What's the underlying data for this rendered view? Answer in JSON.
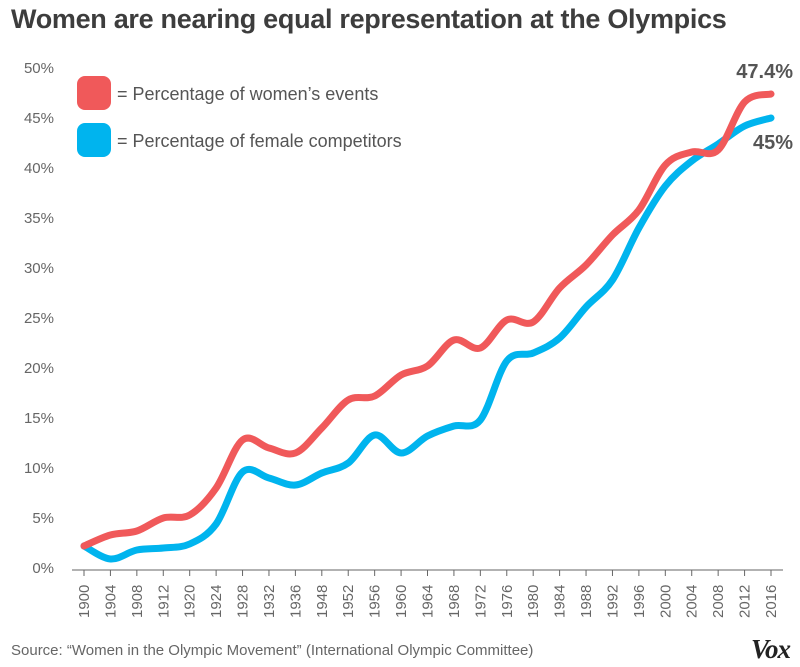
{
  "title": "Women are nearing equal representation at the Olympics",
  "source": "Source: “Women in the Olympic Movement” (International Olympic Committee)",
  "brand": "Vox",
  "chart_data": {
    "type": "line",
    "title": "Women are nearing equal representation at the Olympics",
    "xlabel": "",
    "ylabel": "",
    "ylim": [
      0,
      50
    ],
    "yticks": [
      "0%",
      "5%",
      "10%",
      "15%",
      "20%",
      "25%",
      "30%",
      "35%",
      "40%",
      "45%",
      "50%"
    ],
    "categories": [
      "1900",
      "1904",
      "1908",
      "1912",
      "1920",
      "1924",
      "1928",
      "1932",
      "1936",
      "1948",
      "1952",
      "1956",
      "1960",
      "1964",
      "1968",
      "1972",
      "1976",
      "1980",
      "1984",
      "1988",
      "1992",
      "1996",
      "2000",
      "2004",
      "2008",
      "2012",
      "2016"
    ],
    "grid": false,
    "legend_position": "top-left",
    "series": [
      {
        "name": "= Percentage of women’s events",
        "color": "#f0595a",
        "values": [
          2.2,
          3.3,
          3.7,
          5.0,
          5.3,
          8.0,
          12.8,
          12.0,
          11.5,
          14.0,
          16.8,
          17.2,
          19.3,
          20.2,
          22.8,
          22.0,
          24.8,
          24.6,
          28.0,
          30.3,
          33.3,
          35.8,
          40.3,
          41.6,
          41.8,
          46.6,
          47.4
        ],
        "end_label": "47.4%"
      },
      {
        "name": "= Percentage of female competitors",
        "color": "#00b4ee",
        "values": [
          2.2,
          0.9,
          1.8,
          2.0,
          2.4,
          4.4,
          9.6,
          9.0,
          8.3,
          9.5,
          10.5,
          13.3,
          11.5,
          13.2,
          14.2,
          14.8,
          20.7,
          21.5,
          23.0,
          26.1,
          28.8,
          34.0,
          38.2,
          40.7,
          42.4,
          44.2,
          45.0
        ],
        "end_label": "45%"
      }
    ]
  }
}
